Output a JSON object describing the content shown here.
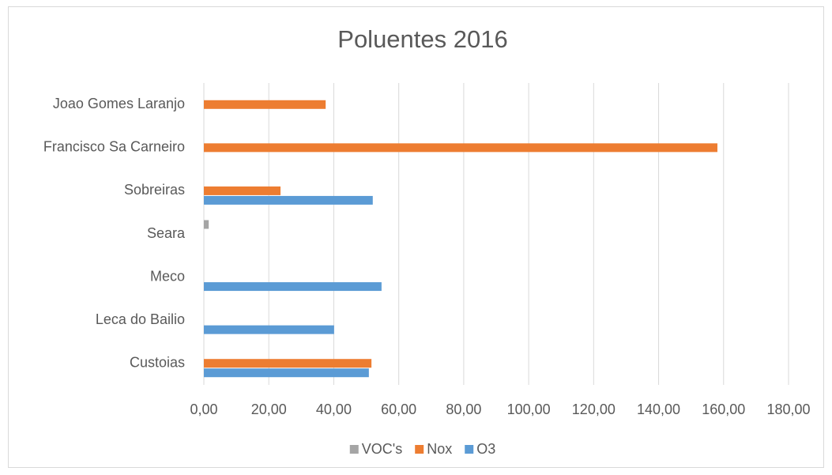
{
  "chart_data": {
    "type": "bar",
    "orientation": "horizontal",
    "title": "Poluentes 2016",
    "categories": [
      "Custoias",
      "Leca do Bailio",
      "Meco",
      "Seara",
      "Sobreiras",
      "Francisco Sa Carneiro",
      "Joao Gomes Laranjo"
    ],
    "series": [
      {
        "name": "VOC's",
        "color": "#a5a5a5",
        "values": [
          null,
          null,
          null,
          1.5,
          null,
          null,
          null
        ]
      },
      {
        "name": "Nox",
        "color": "#ed7d31",
        "values": [
          51.6,
          null,
          null,
          null,
          23.6,
          158.1,
          37.5
        ]
      },
      {
        "name": "O3",
        "color": "#5b9bd5",
        "values": [
          50.8,
          40.1,
          54.7,
          null,
          52.0,
          null,
          null
        ]
      }
    ],
    "xlim": [
      0,
      180
    ],
    "xticks": [
      {
        "value": 0,
        "label": "0,00"
      },
      {
        "value": 20,
        "label": "20,00"
      },
      {
        "value": 40,
        "label": "40,00"
      },
      {
        "value": 60,
        "label": "60,00"
      },
      {
        "value": 80,
        "label": "80,00"
      },
      {
        "value": 100,
        "label": "100,00"
      },
      {
        "value": 120,
        "label": "120,00"
      },
      {
        "value": 140,
        "label": "140,00"
      },
      {
        "value": 160,
        "label": "160,00"
      },
      {
        "value": 180,
        "label": "180,00"
      }
    ],
    "grid": true,
    "legend": "bottom"
  }
}
